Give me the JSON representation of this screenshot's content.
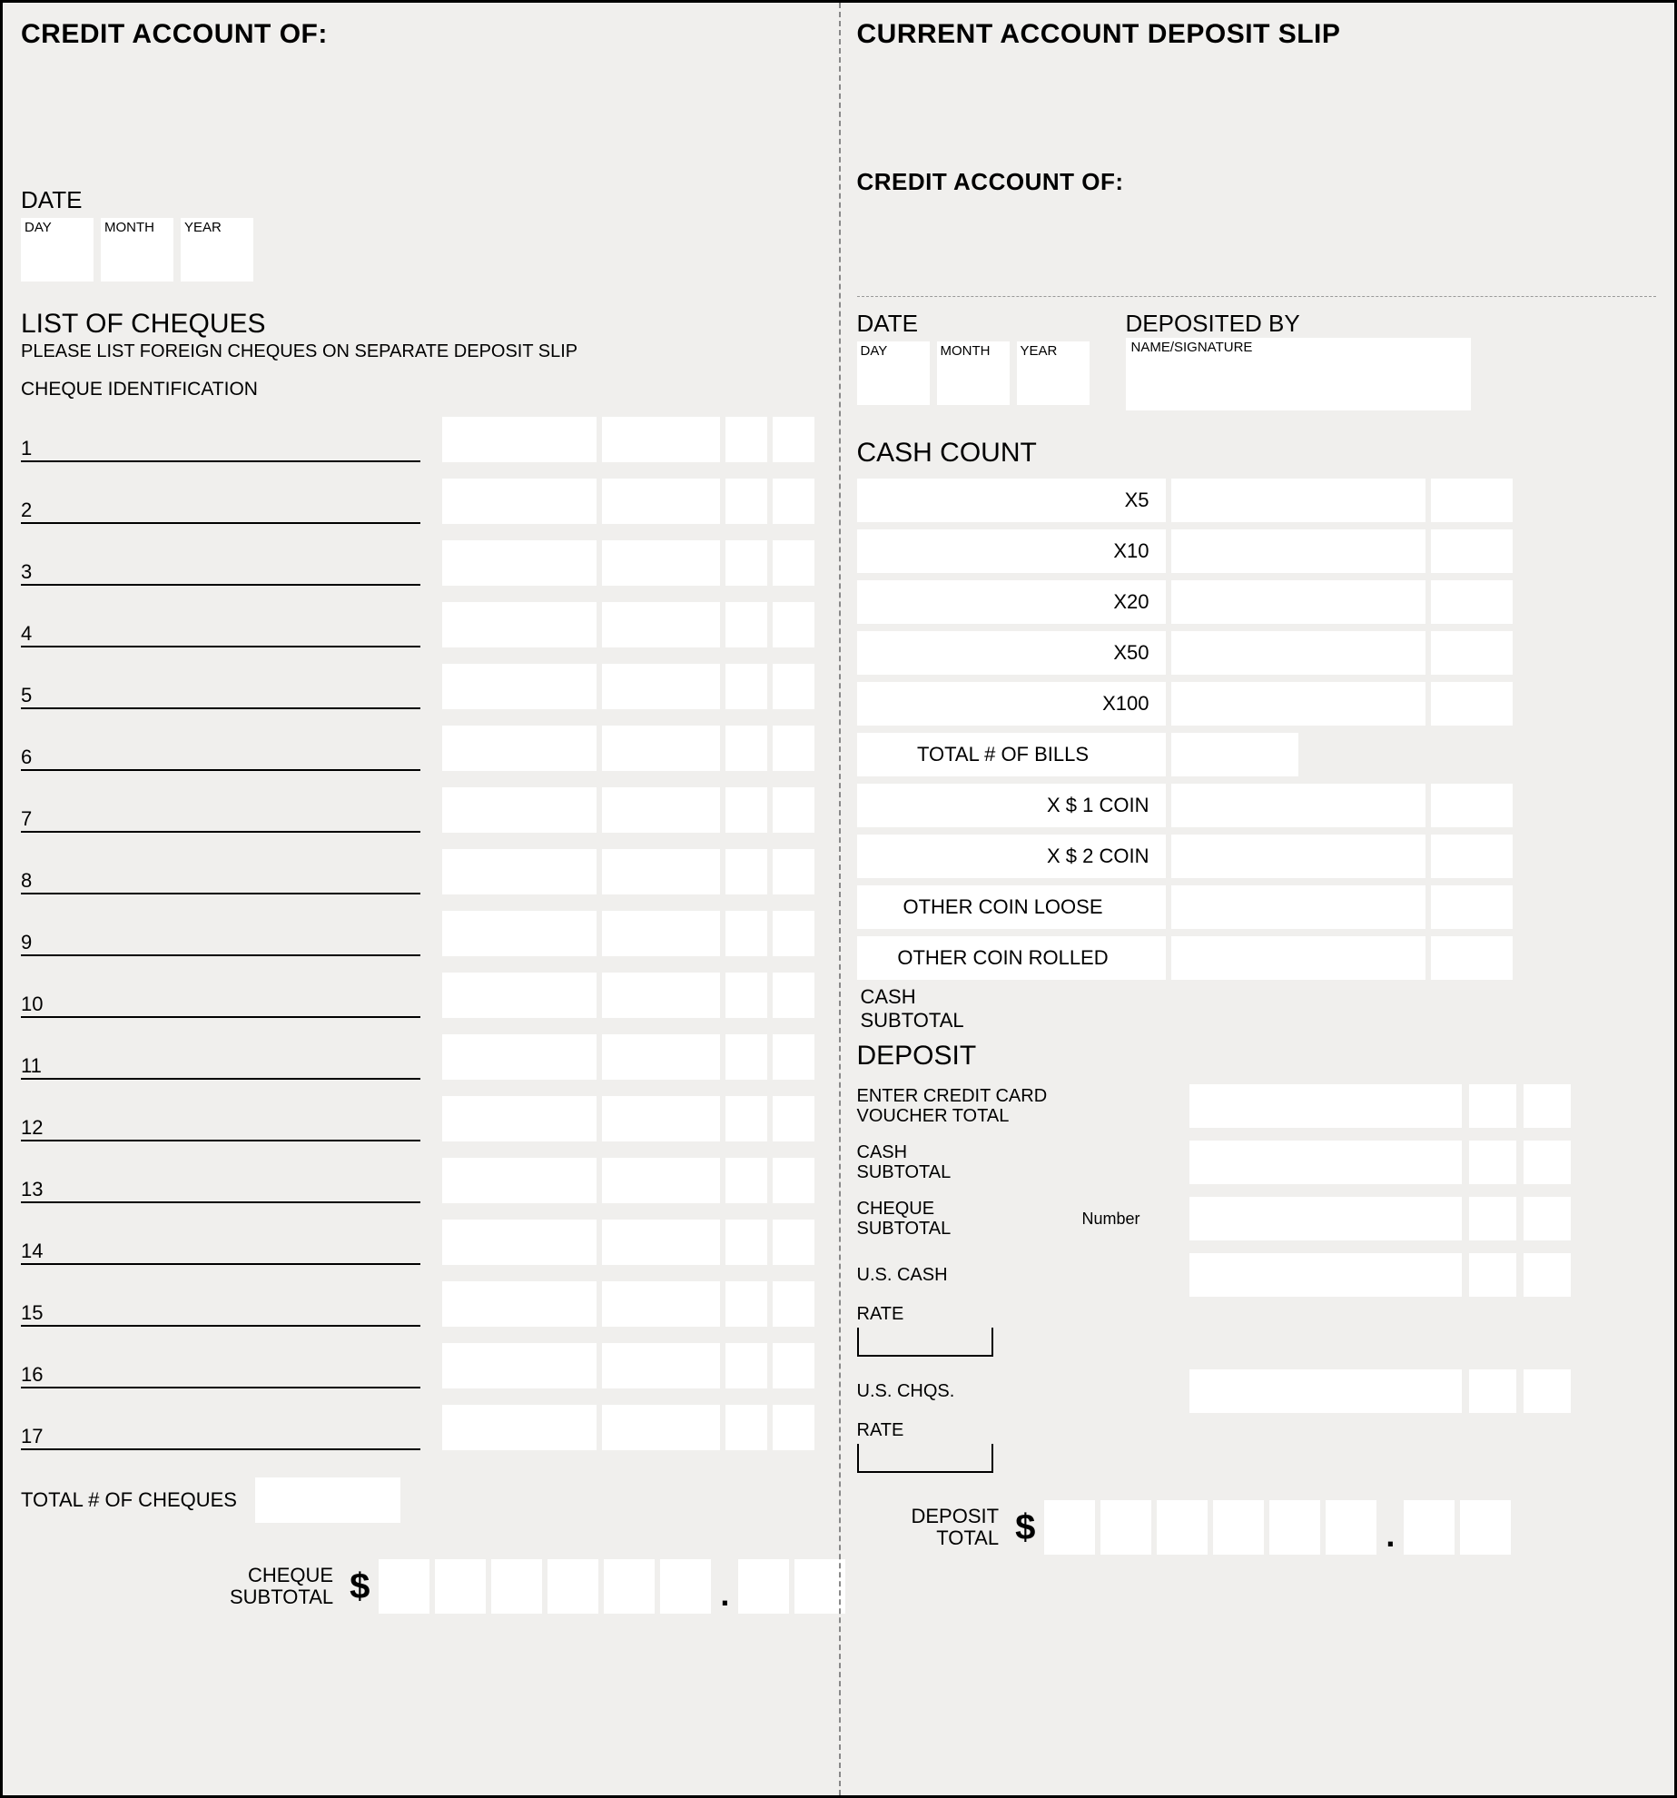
{
  "colors": {
    "bg": "#f0efed",
    "cell": "#ffffff",
    "border": "#000000",
    "dash": "#888888"
  },
  "left": {
    "header": "CREDIT ACCOUNT OF:",
    "date_label": "DATE",
    "date_parts": {
      "day": "DAY",
      "month": "MONTH",
      "year": "YEAR"
    },
    "cheques_title": "LIST OF CHEQUES",
    "cheques_note": "PLEASE LIST FOREIGN CHEQUES ON SEPARATE DEPOSIT SLIP",
    "cheque_id_label": "CHEQUE IDENTIFICATION",
    "rows": [
      "1",
      "2",
      "3",
      "4",
      "5",
      "6",
      "7",
      "8",
      "9",
      "10",
      "11",
      "12",
      "13",
      "14",
      "15",
      "16",
      "17"
    ],
    "total_cheques_label": "TOTAL # OF CHEQUES",
    "subtotal_label_1": "CHEQUE",
    "subtotal_label_2": "SUBTOTAL",
    "dollar": "$"
  },
  "right": {
    "header": "CURRENT ACCOUNT DEPOSIT SLIP",
    "credit_label": "CREDIT ACCOUNT OF:",
    "date_label": "DATE",
    "date_parts": {
      "day": "DAY",
      "month": "MONTH",
      "year": "YEAR"
    },
    "deposited_by_label": "DEPOSITED BY",
    "deposited_by_sub": "NAME/SIGNATURE",
    "cash_title": "CASH COUNT",
    "cash_rows": [
      "X5",
      "X10",
      "X20",
      "X50",
      "X100"
    ],
    "total_bills": "TOTAL # OF BILLS",
    "coin1": "X $ 1 COIN",
    "coin2": "X $ 2 COIN",
    "loose": "OTHER COIN LOOSE",
    "rolled": "OTHER COIN ROLLED",
    "cash_sub_1": "CASH",
    "cash_sub_2": "SUBTOTAL",
    "deposit_title": "DEPOSIT",
    "cc_1": "ENTER CREDIT CARD",
    "cc_2": "VOUCHER TOTAL",
    "cheque_sub_1": "CHEQUE",
    "cheque_sub_2": "SUBTOTAL",
    "number": "Number",
    "us_cash": "U.S. CASH",
    "rate": "RATE",
    "us_chqs": "U.S. CHQS.",
    "dep_total_1": "DEPOSIT",
    "dep_total_2": "TOTAL",
    "dollar": "$"
  }
}
